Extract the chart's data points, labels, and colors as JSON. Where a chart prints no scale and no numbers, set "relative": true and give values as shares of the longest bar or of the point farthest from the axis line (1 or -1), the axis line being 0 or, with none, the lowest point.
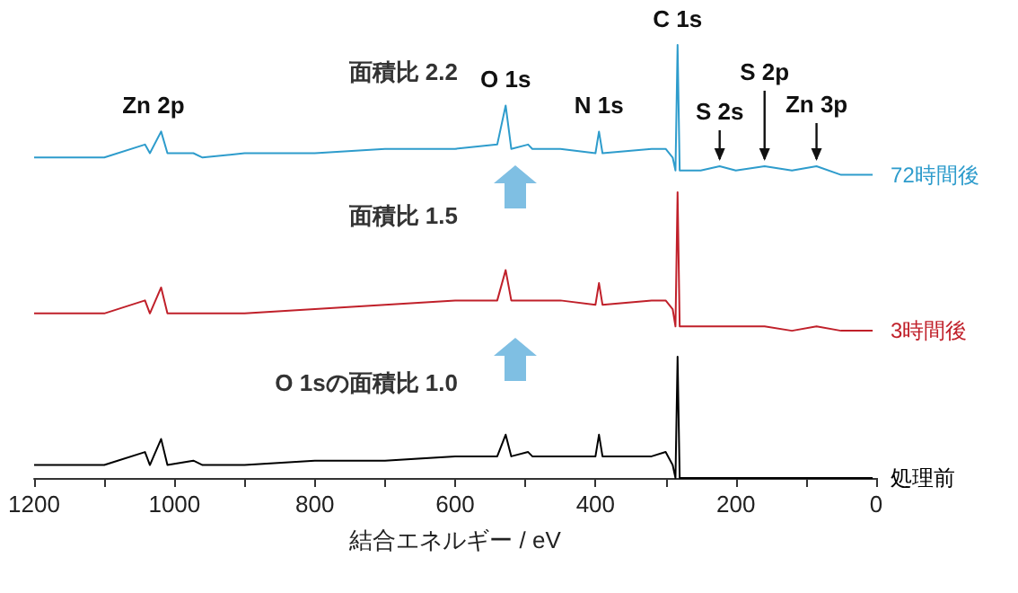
{
  "chart_data": {
    "type": "line",
    "relative": true,
    "xlabel": "結合エネルギー / eV",
    "xlim": [
      1200,
      0
    ],
    "xticks": [
      0,
      {
        "value": 100,
        "label": null
      },
      200,
      {
        "value": 300,
        "label": null
      },
      400,
      {
        "value": 500,
        "label": null
      },
      600,
      {
        "value": 700,
        "label": null
      },
      800,
      {
        "value": 900,
        "label": null
      },
      1000,
      {
        "value": 1100,
        "label": null
      },
      1200
    ],
    "marker": "none",
    "line_style": "solid",
    "legend": false,
    "x": [
      1200,
      1100,
      1042,
      1035,
      1019,
      1010,
      973,
      960,
      900,
      800,
      700,
      600,
      540,
      528,
      520,
      496,
      490,
      450,
      400,
      395,
      390,
      320,
      300,
      290,
      286,
      283,
      280,
      250,
      223,
      200,
      159,
      120,
      85,
      50,
      5
    ],
    "series": [
      {
        "name": "72時間後",
        "color": "#2e9ccc",
        "values": [
          0.74,
          0.74,
          0.77,
          0.75,
          0.8,
          0.75,
          0.75,
          0.74,
          0.75,
          0.75,
          0.76,
          0.76,
          0.77,
          0.86,
          0.76,
          0.77,
          0.76,
          0.76,
          0.75,
          0.8,
          0.75,
          0.76,
          0.76,
          0.74,
          0.71,
          1.0,
          0.71,
          0.71,
          0.72,
          0.71,
          0.72,
          0.71,
          0.72,
          0.7,
          0.7
        ]
      },
      {
        "name": "3時間後",
        "color": "#c0202a",
        "values": [
          0.38,
          0.38,
          0.41,
          0.38,
          0.44,
          0.38,
          0.38,
          0.38,
          0.38,
          0.39,
          0.4,
          0.41,
          0.41,
          0.48,
          0.41,
          0.41,
          0.41,
          0.41,
          0.4,
          0.45,
          0.4,
          0.41,
          0.41,
          0.39,
          0.35,
          0.66,
          0.35,
          0.35,
          0.35,
          0.35,
          0.35,
          0.34,
          0.35,
          0.34,
          0.34
        ]
      },
      {
        "name": "処理前",
        "color": "#000000",
        "values": [
          0.03,
          0.03,
          0.06,
          0.03,
          0.09,
          0.03,
          0.04,
          0.03,
          0.03,
          0.04,
          0.04,
          0.05,
          0.05,
          0.1,
          0.05,
          0.06,
          0.05,
          0.05,
          0.05,
          0.1,
          0.05,
          0.05,
          0.06,
          0.03,
          0.0,
          0.28,
          0.0,
          0.0,
          0.0,
          0.0,
          0.0,
          0.0,
          0.0,
          0.0,
          0.0
        ]
      }
    ],
    "annotations": [
      "面積比 2.2",
      "面積比 1.5",
      "O 1sの面積比 1.0",
      {
        "text": "Zn 2p",
        "x": 1030,
        "y": 0.8
      },
      {
        "text": "O 1s",
        "x": 528,
        "y": 0.86
      },
      {
        "text": "N 1s",
        "x": 395,
        "y": 0.8
      },
      {
        "text": "C 1s",
        "x": 283,
        "y": 1.0
      },
      {
        "text": "S 2s",
        "x": 223,
        "y": 0.72
      },
      {
        "text": "S 2p",
        "x": 159,
        "y": 0.72
      },
      {
        "text": "Zn 3p",
        "x": 85,
        "y": 0.72
      }
    ]
  }
}
